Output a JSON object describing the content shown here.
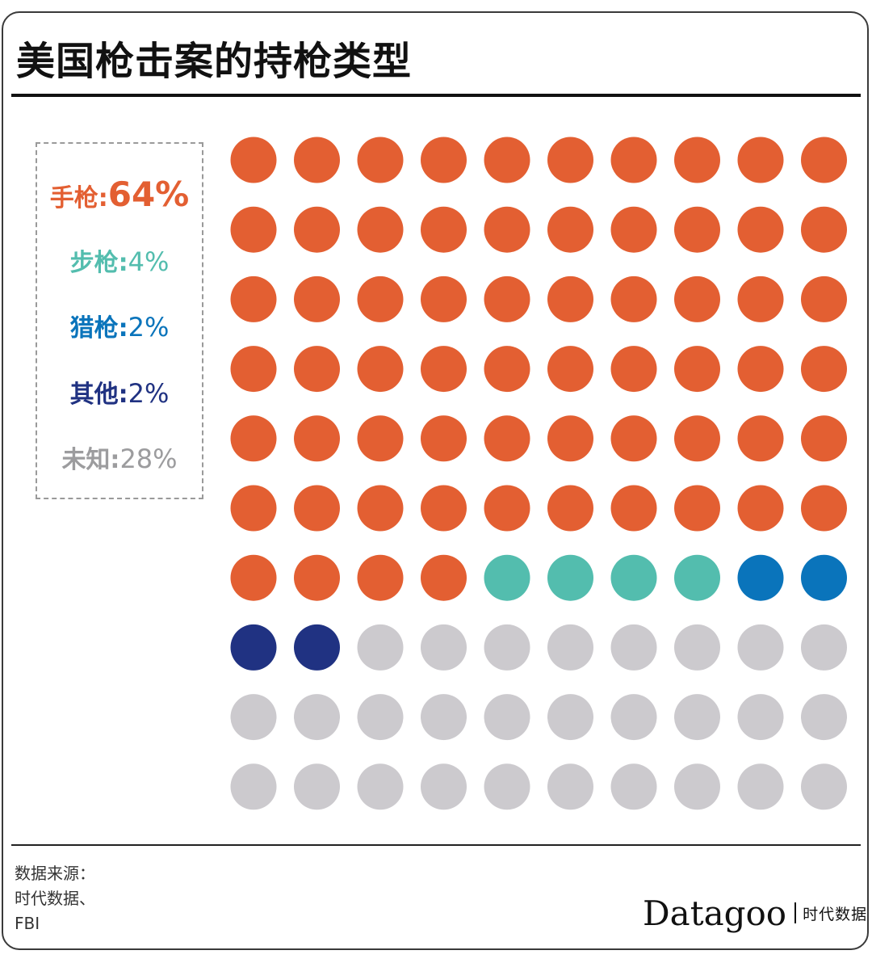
{
  "title": "美国枪击案的持枪类型",
  "chart_data": {
    "type": "waffle",
    "rows": 10,
    "columns": 10,
    "series": [
      {
        "name": "手枪",
        "label": "手枪:",
        "value_label": "64%",
        "value": 64,
        "color": "#E35F32"
      },
      {
        "name": "步枪",
        "label": "步枪:",
        "value_label": "4%",
        "value": 4,
        "color": "#53BDAE"
      },
      {
        "name": "猎枪",
        "label": "猎枪:",
        "value_label": "2%",
        "value": 2,
        "color": "#0A74BB"
      },
      {
        "name": "其他",
        "label": "其他:",
        "value_label": "2%",
        "value": 2,
        "color": "#203282"
      },
      {
        "name": "未知",
        "label": "未知:",
        "value_label": "28%",
        "value": 28,
        "color": "#CCCACE"
      }
    ]
  },
  "source": {
    "lines": [
      "数据来源：",
      "时代数据、",
      "FBI"
    ]
  },
  "brand": {
    "wordmark": "Datagoo",
    "tagline": "时代数据"
  }
}
